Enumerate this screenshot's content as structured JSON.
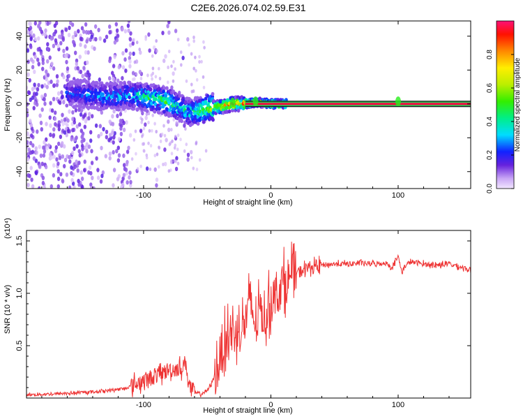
{
  "title": "C2E6.2026.074.02.59.E31",
  "chart_data": [
    {
      "type": "heatmap",
      "xlabel": "Height of straight line (km)",
      "ylabel": "Frequency (Hz)",
      "xlim": [
        -192,
        157
      ],
      "ylim": [
        -50,
        49
      ],
      "xticks": [
        -100,
        0,
        100
      ],
      "xtick_labels": [
        "-100",
        "0",
        "100"
      ],
      "yticks": [
        -40,
        -20,
        0,
        20,
        40
      ],
      "ytick_labels": [
        "-40",
        "-20",
        "0",
        "20",
        "40"
      ],
      "colorbar": {
        "label": "Normalized spectral amplitude",
        "range": [
          0,
          1
        ],
        "ticks": [
          0.0,
          0.2,
          0.4,
          0.6,
          0.8
        ],
        "tick_labels": [
          "0.0",
          "0.2",
          "0.4",
          "0.6",
          "0.8"
        ]
      },
      "ridge": {
        "x": [
          -150,
          -140,
          -125,
          -110,
          -100,
          -90,
          -80,
          -70,
          -62,
          -55,
          -50,
          -40,
          -30,
          -20,
          -10,
          0,
          10,
          157
        ],
        "frequency": [
          6,
          5,
          4,
          5,
          4,
          3,
          1,
          -3,
          -5,
          -4,
          -2,
          -2,
          0,
          0,
          1,
          0,
          0,
          0
        ],
        "amplitude": [
          0.25,
          0.3,
          0.3,
          0.35,
          0.45,
          0.45,
          0.5,
          0.4,
          0.4,
          0.55,
          0.6,
          0.8,
          0.85,
          0.8,
          0.7,
          0.85,
          1.0,
          1.0
        ]
      }
    },
    {
      "type": "line",
      "xlabel": "Height of straight line (km)",
      "ylabel": "SNR (10 * v/v)",
      "y_multiplier": "(x10⁴)",
      "xlim": [
        -192,
        157
      ],
      "ylim": [
        0,
        1.6
      ],
      "xticks": [
        -100,
        0,
        100
      ],
      "xtick_labels": [
        "-100",
        "0",
        "100"
      ],
      "yticks": [
        0.5,
        1.0,
        1.5
      ],
      "ytick_labels": [
        "0.5",
        "1.0",
        "1.5"
      ],
      "series": [
        {
          "name": "SNR",
          "color": "#ee3333",
          "x": [
            -192,
            -170,
            -150,
            -130,
            -115,
            -105,
            -95,
            -85,
            -80,
            -75,
            -70,
            -67,
            -64,
            -60,
            -55,
            -50,
            -45,
            -40,
            -35,
            -30,
            -25,
            -20,
            -16,
            -12,
            -8,
            -5,
            -3,
            0,
            5,
            10,
            15,
            20,
            25,
            30,
            40,
            50,
            60,
            70,
            80,
            90,
            95,
            100,
            103,
            106,
            110,
            120,
            130,
            140,
            150,
            157
          ],
          "y": [
            0.03,
            0.04,
            0.05,
            0.07,
            0.09,
            0.14,
            0.19,
            0.24,
            0.27,
            0.28,
            0.29,
            0.34,
            0.12,
            0.05,
            0.04,
            0.07,
            0.18,
            0.38,
            0.58,
            0.62,
            0.64,
            0.72,
            0.95,
            0.66,
            0.88,
            0.72,
            0.85,
            0.92,
            1.03,
            1.1,
            1.15,
            1.19,
            1.22,
            1.25,
            1.27,
            1.28,
            1.28,
            1.29,
            1.28,
            1.29,
            1.25,
            1.35,
            1.2,
            1.27,
            1.3,
            1.28,
            1.27,
            1.28,
            1.25,
            1.22
          ]
        }
      ]
    }
  ]
}
